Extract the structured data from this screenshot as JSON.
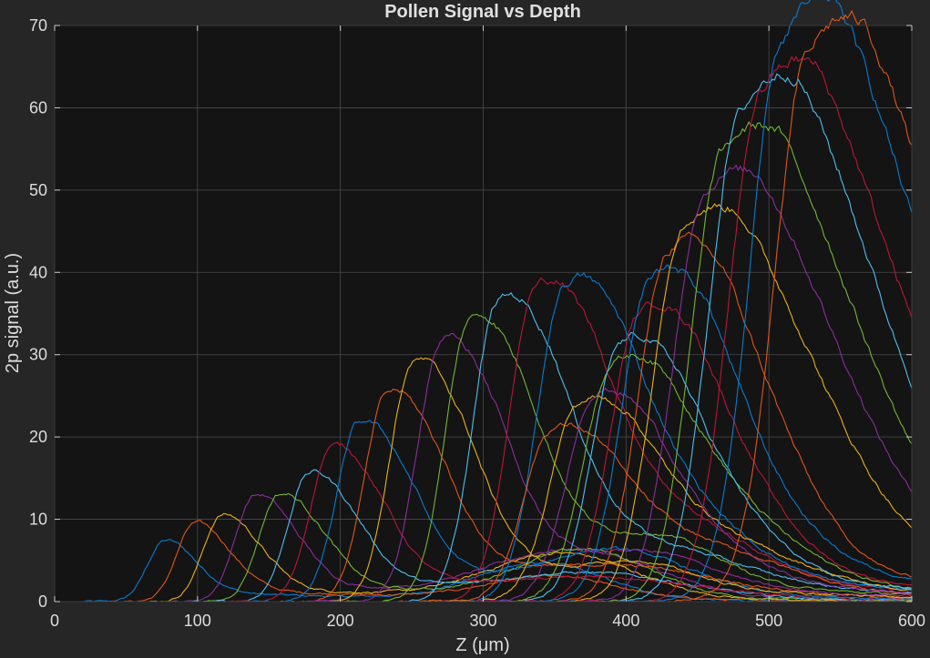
{
  "chart_data": {
    "type": "line",
    "title": "Pollen Signal vs Depth",
    "xlabel": "Z (μm)",
    "ylabel": "2p signal (a.u.)",
    "xlim": [
      0,
      600
    ],
    "ylim": [
      0,
      70
    ],
    "xticks": [
      "0",
      "100",
      "200",
      "300",
      "400",
      "500",
      "600"
    ],
    "yticks": [
      "0",
      "10",
      "20",
      "30",
      "40",
      "50",
      "60",
      "70"
    ],
    "grid": true,
    "background": "#141414",
    "figure_background": "#262626",
    "series_colors": [
      "#0a7bd1",
      "#e0561a",
      "#e8b020",
      "#8a2e9a",
      "#74b434",
      "#4dbfee",
      "#b8163a"
    ],
    "series": [
      {
        "peak_z": 77,
        "peak": 7.4
      },
      {
        "peak_z": 98,
        "peak": 9.5
      },
      {
        "peak_z": 117,
        "peak": 10.5
      },
      {
        "peak_z": 140,
        "peak": 12.9
      },
      {
        "peak_z": 157,
        "peak": 13.0
      },
      {
        "peak_z": 178,
        "peak": 15.6
      },
      {
        "peak_z": 194,
        "peak": 18.8
      },
      {
        "peak_z": 213,
        "peak": 21.7
      },
      {
        "peak_z": 233,
        "peak": 25.3
      },
      {
        "peak_z": 251,
        "peak": 29.0
      },
      {
        "peak_z": 271,
        "peak": 31.6
      },
      {
        "peak_z": 291,
        "peak": 34.3
      },
      {
        "peak_z": 311,
        "peak": 36.4
      },
      {
        "peak_z": 337,
        "peak": 37.4
      },
      {
        "peak_z": 357,
        "peak": 37.7
      },
      {
        "peak_z": 347,
        "peak": 20.0
      },
      {
        "peak_z": 366,
        "peak": 22.5
      },
      {
        "peak_z": 378,
        "peak": 25.0
      },
      {
        "peak_z": 390,
        "peak": 27.5
      },
      {
        "peak_z": 397,
        "peak": 31.4
      },
      {
        "peak_z": 410,
        "peak": 34.9
      },
      {
        "peak_z": 418,
        "peak": 38.7
      },
      {
        "peak_z": 430,
        "peak": 42.3
      },
      {
        "peak_z": 440,
        "peak": 45.2
      },
      {
        "peak_z": 455,
        "peak": 49.2
      },
      {
        "peak_z": 468,
        "peak": 54.3
      },
      {
        "peak_z": 480,
        "peak": 57.3
      },
      {
        "peak_z": 495,
        "peak": 61.1
      },
      {
        "peak_z": 510,
        "peak": 65.4
      },
      {
        "peak_z": 528,
        "peak": 64.6
      }
    ]
  }
}
